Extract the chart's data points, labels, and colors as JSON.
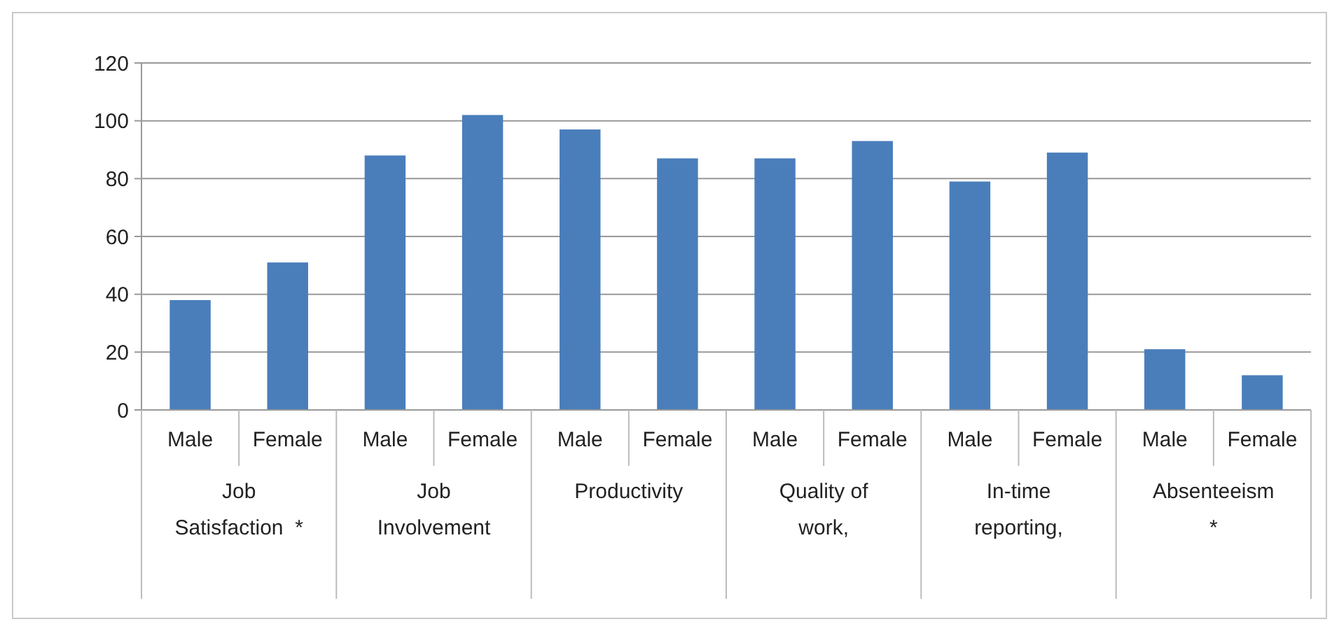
{
  "chart_data": {
    "type": "bar",
    "categories": [
      "Male",
      "Female",
      "Male",
      "Female",
      "Male",
      "Female",
      "Male",
      "Female",
      "Male",
      "Female",
      "Male",
      "Female"
    ],
    "values": [
      38,
      51,
      88,
      102,
      97,
      87,
      87,
      93,
      79,
      89,
      21,
      12
    ],
    "color": "#4a7ebb",
    "ylim": [
      0,
      120
    ],
    "yticks": [
      0,
      20,
      40,
      60,
      80,
      100,
      120
    ],
    "grid": "y",
    "annotations": [
      "Job\nSatisfaction  *",
      "Job\nInvolvement",
      "Productivity",
      "Quality of\nwork,",
      "In-time\nreporting,",
      "Absenteeism\n*"
    ]
  }
}
